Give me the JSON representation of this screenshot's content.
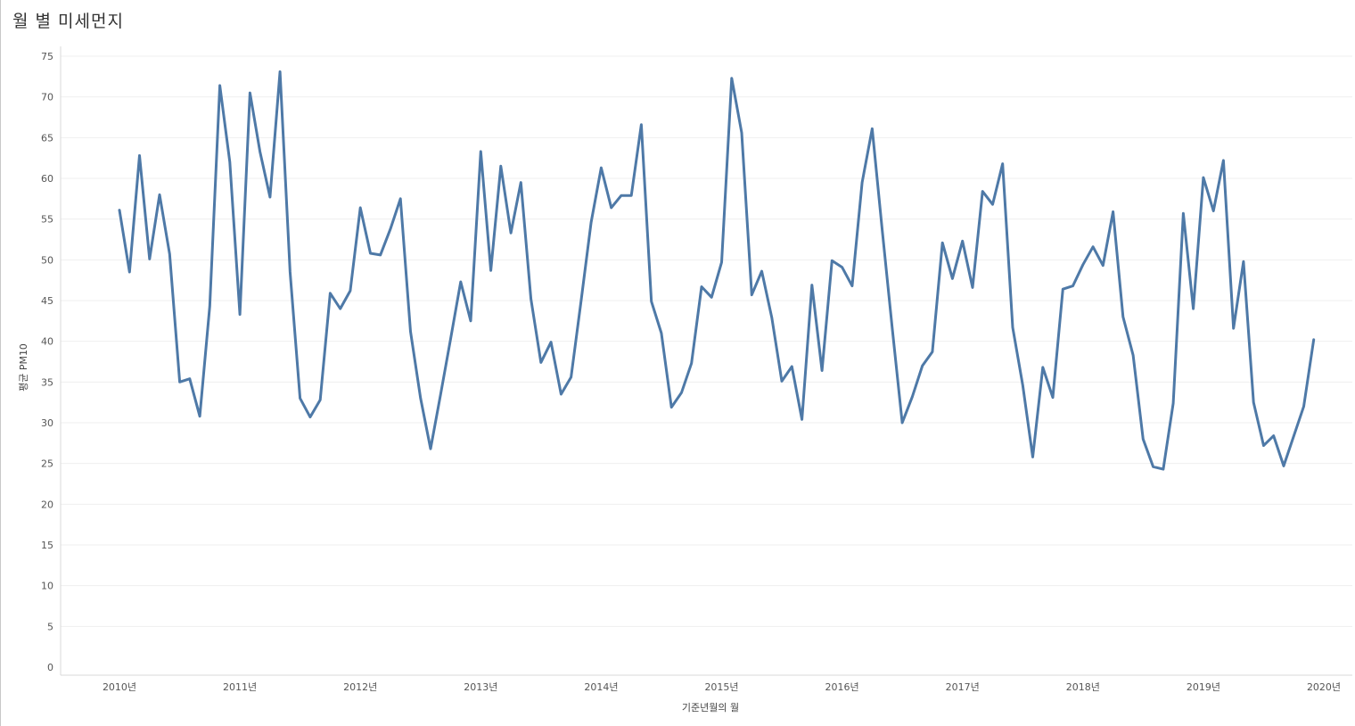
{
  "title": "월 별 미세먼지",
  "chart_data": {
    "type": "line",
    "title": "월 별 미세먼지",
    "xlabel": "기준년월의 월",
    "ylabel": "평균 PM10",
    "ylim": [
      0,
      75
    ],
    "y_ticks": [
      0,
      5,
      10,
      15,
      20,
      25,
      30,
      35,
      40,
      45,
      50,
      55,
      60,
      65,
      70,
      75
    ],
    "x_ticks": [
      "2010년",
      "2011년",
      "2012년",
      "2013년",
      "2014년",
      "2015년",
      "2016년",
      "2017년",
      "2018년",
      "2019년",
      "2020년"
    ],
    "grid": true,
    "line_color": "#4e79a7",
    "x": [
      "2010-01",
      "2010-02",
      "2010-03",
      "2010-04",
      "2010-05",
      "2010-06",
      "2010-07",
      "2010-08",
      "2010-09",
      "2010-10",
      "2010-11",
      "2010-12",
      "2011-01",
      "2011-02",
      "2011-03",
      "2011-04",
      "2011-05",
      "2011-06",
      "2011-07",
      "2011-08",
      "2011-09",
      "2011-10",
      "2011-11",
      "2011-12",
      "2012-01",
      "2012-02",
      "2012-03",
      "2012-04",
      "2012-05",
      "2012-06",
      "2012-07",
      "2012-08",
      "2012-09",
      "2012-10",
      "2012-11",
      "2012-12",
      "2013-01",
      "2013-02",
      "2013-03",
      "2013-04",
      "2013-05",
      "2013-06",
      "2013-07",
      "2013-08",
      "2013-09",
      "2013-10",
      "2013-11",
      "2013-12",
      "2014-01",
      "2014-02",
      "2014-03",
      "2014-04",
      "2014-05",
      "2014-06",
      "2014-07",
      "2014-08",
      "2014-09",
      "2014-10",
      "2014-11",
      "2014-12",
      "2015-01",
      "2015-02",
      "2015-03",
      "2015-04",
      "2015-05",
      "2015-06",
      "2015-07",
      "2015-08",
      "2015-09",
      "2015-10",
      "2015-11",
      "2015-12",
      "2016-01",
      "2016-02",
      "2016-03",
      "2016-04",
      "2016-05",
      "2016-06",
      "2016-07",
      "2016-08",
      "2016-09",
      "2016-10",
      "2016-11",
      "2016-12",
      "2017-01",
      "2017-02",
      "2017-03",
      "2017-04",
      "2017-05",
      "2017-06",
      "2017-07",
      "2017-08",
      "2017-09",
      "2017-10",
      "2017-11",
      "2017-12",
      "2018-01",
      "2018-02",
      "2018-03",
      "2018-04",
      "2018-05",
      "2018-06",
      "2018-07",
      "2018-08",
      "2018-09",
      "2018-10",
      "2018-11",
      "2018-12",
      "2019-01",
      "2019-02",
      "2019-03",
      "2019-04",
      "2019-05",
      "2019-06",
      "2019-07",
      "2019-08",
      "2019-09",
      "2019-10",
      "2019-11",
      "2019-12"
    ],
    "series": [
      {
        "values": [
          56.1,
          48.5,
          62.8,
          50.1,
          58.0,
          50.7,
          35.0,
          35.4,
          30.8,
          44.3,
          71.4,
          62.0,
          43.3,
          70.5,
          63.3,
          57.7,
          73.1,
          48.5,
          33.0,
          30.7,
          32.8,
          45.9,
          44.0,
          46.2,
          56.4,
          50.8,
          50.6,
          53.8,
          57.5,
          41.2,
          33.0,
          26.8,
          33.5,
          40.3,
          47.3,
          42.5,
          63.3,
          48.7,
          61.5,
          53.3,
          59.5,
          45.2,
          37.4,
          39.9,
          33.5,
          35.6,
          45.0,
          54.6,
          61.3,
          56.4,
          57.9,
          57.9,
          66.6,
          44.9,
          41.0,
          31.9,
          33.7,
          37.3,
          46.7,
          45.4,
          49.7,
          72.3,
          65.6,
          45.7,
          48.6,
          42.9,
          35.1,
          36.9,
          30.4,
          46.9,
          36.4,
          49.9,
          49.1,
          46.8,
          59.5,
          66.1,
          53.7,
          41.6,
          30.0,
          33.2,
          37.0,
          38.7,
          52.1,
          47.7,
          52.3,
          46.6,
          58.4,
          56.8,
          61.8,
          41.7,
          34.6,
          25.8,
          36.8,
          33.1,
          46.4,
          46.8,
          49.4,
          51.6,
          49.3,
          55.9,
          43.0,
          38.3,
          28.0,
          24.6,
          24.3,
          32.4,
          55.7,
          44.0,
          60.1,
          56.0,
          62.2,
          41.6,
          49.8,
          32.5,
          27.2,
          28.4,
          24.7,
          null,
          32.0,
          40.2
        ]
      }
    ]
  }
}
